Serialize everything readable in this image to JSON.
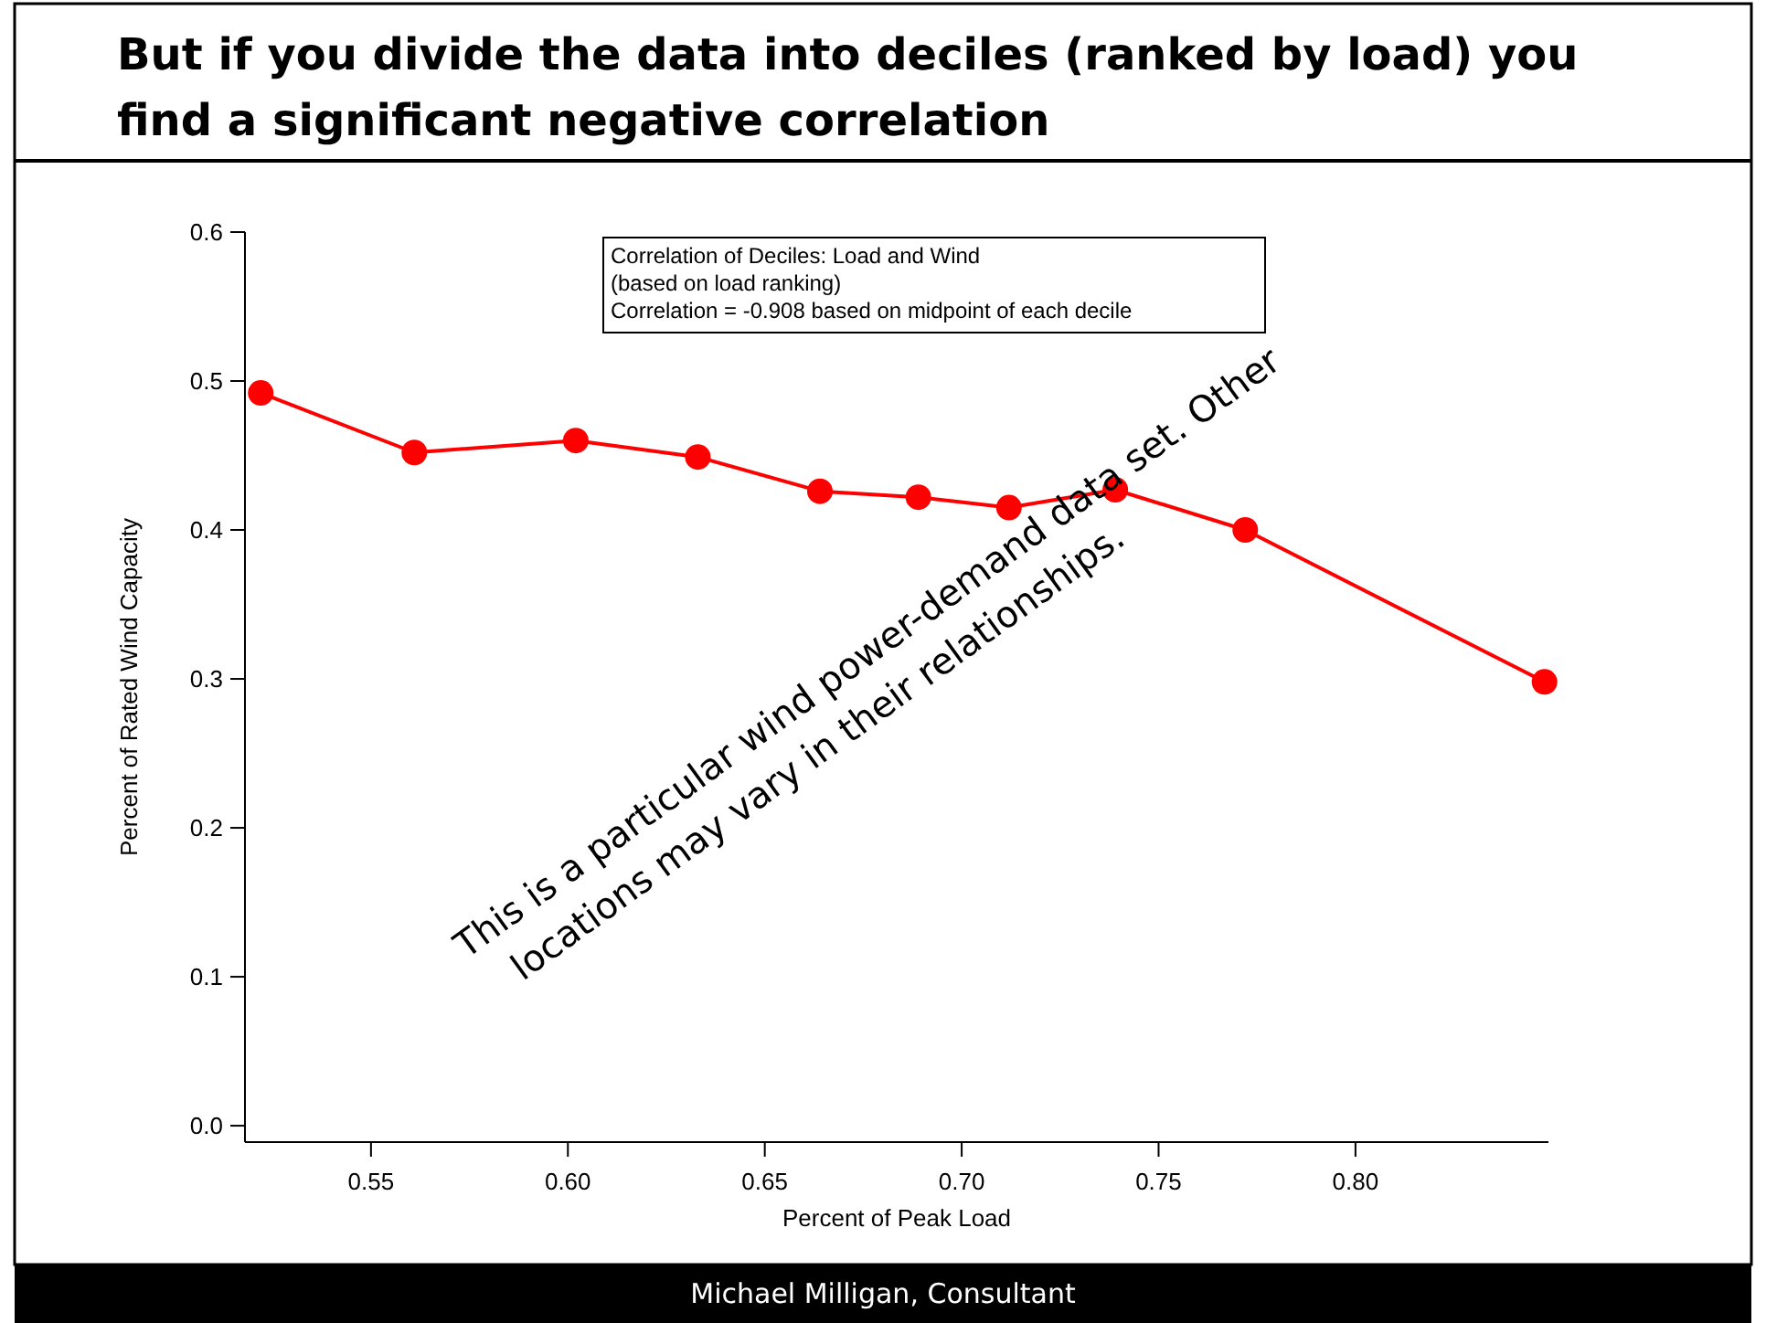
{
  "chart_data": {
    "type": "line",
    "title": "But if you divide the data into deciles (ranked by load) you find a significant negative correlation",
    "xlabel": "Percent of Peak Load",
    "ylabel": "Percent of Rated Wind Capacity",
    "x": [
      0.522,
      0.561,
      0.602,
      0.633,
      0.664,
      0.689,
      0.712,
      0.739,
      0.772,
      0.848
    ],
    "series": [
      {
        "color": "#ff0000",
        "values": [
          0.492,
          0.452,
          0.46,
          0.449,
          0.426,
          0.422,
          0.415,
          0.427,
          0.4,
          0.298
        ]
      }
    ],
    "xlim": [
      0.518,
      0.849
    ],
    "xticks": [
      {
        "value": 0.55,
        "label": "0.55"
      },
      {
        "value": 0.6,
        "label": "0.60"
      },
      {
        "value": 0.65,
        "label": "0.65"
      },
      {
        "value": 0.7,
        "label": "0.70"
      },
      {
        "value": 0.75,
        "label": "0.75"
      },
      {
        "value": 0.8,
        "label": "0.80"
      }
    ],
    "ylim": [
      -0.011,
      0.6
    ],
    "yticks": [
      {
        "value": 0,
        "label": "0.0"
      },
      0.1,
      0.2,
      0.3,
      0.4,
      0.5,
      0.6
    ],
    "marker": "circle",
    "line_style": "solid",
    "grid": false,
    "annotations": [
      "Correlation of Deciles: Load and Wind\n(based on load ranking)\nCorrelation = -0.908 based on midpoint of each decile",
      "This is a particular wind power-demand data set. Other\nlocations may vary in their relationships.",
      "Michael Milligan, Consultant"
    ]
  }
}
